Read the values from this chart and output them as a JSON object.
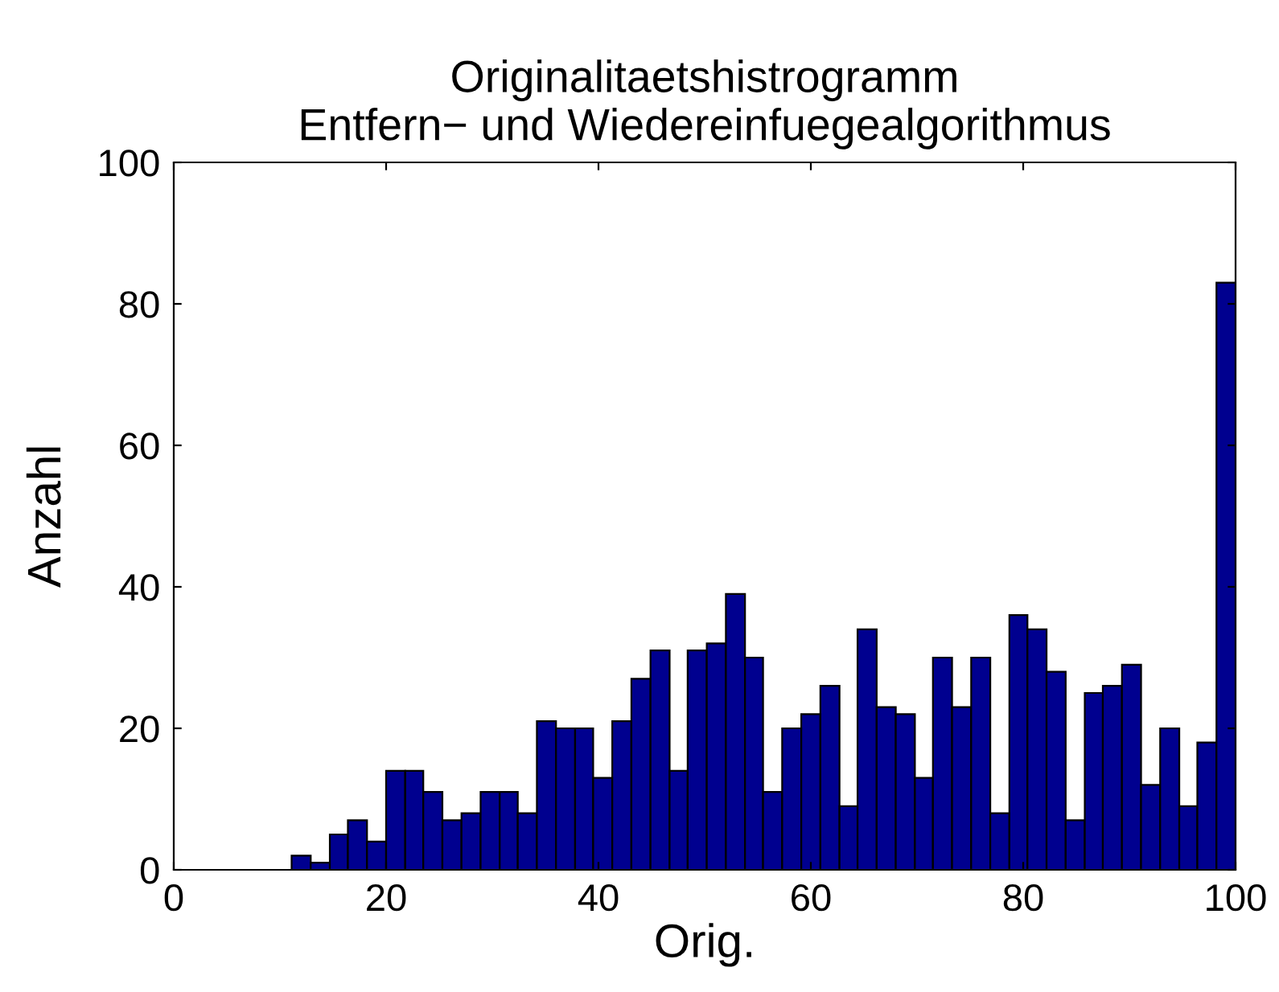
{
  "chart_data": {
    "type": "histogram",
    "title": "Originalitaetshistrogramm\nEntfern− und Wiedereinfuegealgorithmus",
    "xlabel": "Orig.",
    "ylabel": "Anzahl",
    "bins": [
      11.1,
      12.9,
      14.7,
      16.4,
      18.2,
      20.0,
      21.8,
      23.5,
      25.3,
      27.1,
      28.9,
      30.7,
      32.4,
      34.2,
      36.0,
      37.8,
      39.5,
      41.3,
      43.1,
      44.9,
      46.7,
      48.4,
      50.2,
      52.0,
      53.8,
      55.5,
      57.3,
      59.1,
      60.9,
      62.7,
      64.4,
      66.2,
      68.0,
      69.8,
      71.5,
      73.3,
      75.1,
      76.9,
      78.7,
      80.4,
      82.2,
      84.0,
      85.8,
      87.5,
      89.3,
      91.1,
      92.9,
      94.7,
      96.4,
      98.2,
      100
    ],
    "values": [
      2,
      1,
      5,
      7,
      4,
      14,
      14,
      11,
      7,
      8,
      11,
      11,
      8,
      21,
      20,
      20,
      13,
      21,
      27,
      31,
      14,
      31,
      32,
      39,
      30,
      11,
      20,
      22,
      26,
      9,
      34,
      23,
      22,
      13,
      30,
      23,
      30,
      8,
      36,
      34,
      28,
      7,
      25,
      26,
      29,
      12,
      20,
      9,
      18,
      83
    ],
    "color": "#00008f",
    "xlim": [
      0,
      100
    ],
    "ylim": [
      0,
      100
    ],
    "xticks": [
      0,
      20,
      40,
      60,
      80,
      100
    ],
    "yticks": [
      0,
      20,
      40,
      60,
      80,
      100
    ],
    "grid": false
  }
}
